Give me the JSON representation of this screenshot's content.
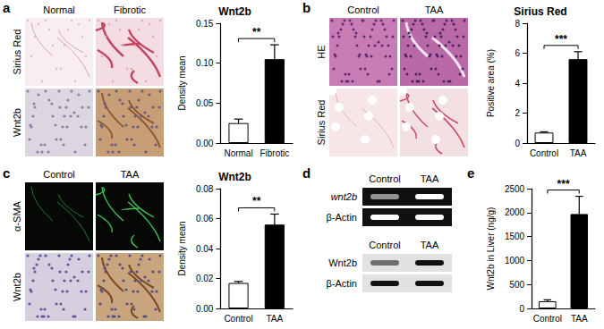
{
  "chart_data": [
    {
      "type": "bar",
      "title": "Wnt2b",
      "y_label": "Density mean",
      "categories": [
        "Normal",
        "Fibrotic"
      ],
      "values": [
        0.025,
        0.105
      ],
      "errors": [
        0.005,
        0.018
      ],
      "colors": [
        "#ffffff",
        "#000000"
      ],
      "ylim": [
        0,
        0.15
      ],
      "yticks": [
        {
          "value": 0,
          "label": "0.00"
        },
        {
          "value": 0.05,
          "label": "0.05"
        },
        {
          "value": 0.1,
          "label": "0.10"
        },
        {
          "value": 0.15,
          "label": "0.15"
        }
      ],
      "annotation": "**",
      "grid": false
    },
    {
      "type": "bar",
      "title": "Sirius Red",
      "y_label": "Positive area (%)",
      "categories": [
        "Control",
        "TAA"
      ],
      "values": [
        0.7,
        5.6
      ],
      "errors": [
        0.05,
        0.5
      ],
      "colors": [
        "#ffffff",
        "#000000"
      ],
      "ylim": [
        0,
        8
      ],
      "yticks": [
        0,
        2,
        4,
        6,
        8
      ],
      "annotation": "***",
      "grid": false
    },
    {
      "type": "bar",
      "title": "Wnt2b",
      "y_label": "Density mean",
      "categories": [
        "Control",
        "TAA"
      ],
      "values": [
        0.017,
        0.056
      ],
      "errors": [
        0.001,
        0.007
      ],
      "colors": [
        "#ffffff",
        "#000000"
      ],
      "ylim": [
        0,
        0.08
      ],
      "yticks": [
        {
          "value": 0,
          "label": "0.00"
        },
        {
          "value": 0.02,
          "label": "0.02"
        },
        {
          "value": 0.04,
          "label": "0.04"
        },
        {
          "value": 0.06,
          "label": "0.06"
        },
        {
          "value": 0.08,
          "label": "0.08"
        }
      ],
      "annotation": "**",
      "grid": false
    },
    {
      "type": "bar",
      "y_label": "Wnt2b in Liver (ng/g)",
      "categories": [
        "Control",
        "TAA"
      ],
      "values": [
        150,
        1970
      ],
      "errors": [
        30,
        370
      ],
      "colors": [
        "#ffffff",
        "#000000"
      ],
      "ylim": [
        0,
        2500
      ],
      "yticks": [
        0,
        500,
        1000,
        1500,
        2000,
        2500
      ],
      "annotation": "***",
      "grid": false
    }
  ],
  "panels": [
    {
      "letter": "a",
      "column_heads": [
        "Normal",
        "Fibrotic"
      ],
      "row_heads": [
        "Sirius Red",
        "Wnt2b"
      ]
    },
    {
      "letter": "b",
      "column_heads": [
        "Control",
        "TAA"
      ],
      "row_heads": [
        "HE",
        "Sirius Red"
      ]
    },
    {
      "letter": "c",
      "column_heads": [
        "Control",
        "TAA"
      ],
      "row_heads": [
        "α-SMA",
        "Wnt2b"
      ]
    },
    {
      "letter": "d",
      "blots": [
        {
          "column_heads": [
            "Control",
            "TAA"
          ],
          "row_heads": [
            "wnt2b",
            "β-Actin"
          ]
        },
        {
          "column_heads": [
            "Control",
            "TAA"
          ],
          "row_heads": [
            "Wnt2b",
            "β-Actin"
          ]
        }
      ]
    },
    {
      "letter": "e"
    }
  ]
}
